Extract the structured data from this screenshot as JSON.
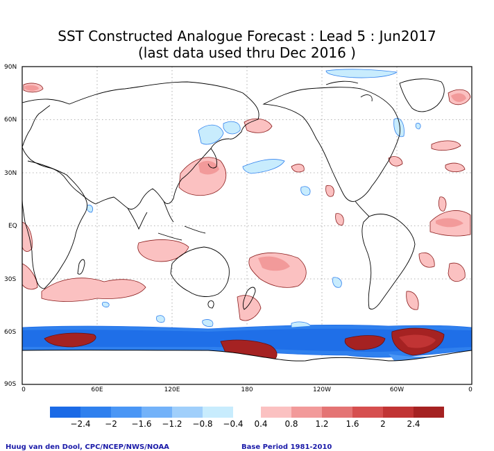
{
  "title": {
    "line1": "SST Constructed Analogue Forecast : Lead 5 : Jun2017",
    "line2": "(last data used thru Dec 2016 )"
  },
  "map": {
    "lat_labels": [
      "90N",
      "60N",
      "30N",
      "EQ",
      "30S",
      "60S",
      "90S"
    ],
    "lon_labels": [
      "0",
      "60E",
      "120E",
      "180",
      "120W",
      "60W",
      "0"
    ]
  },
  "colorbar": {
    "cool_colors": [
      "#1b6ae6",
      "#2f80ee",
      "#4a96f5",
      "#73b2f9",
      "#a0cffb",
      "#c8ecfd"
    ],
    "warm_colors": [
      "#fbc1c1",
      "#f29a9a",
      "#e47474",
      "#d64f4f",
      "#c13434",
      "#a52222"
    ],
    "cool_labels": [
      "−2.4",
      "−2",
      "−1.6",
      "−1.2",
      "−0.8",
      "−0.4"
    ],
    "warm_labels": [
      "0.4",
      "0.8",
      "1.2",
      "1.6",
      "2",
      "2.4"
    ]
  },
  "footer": {
    "left": "Huug van den Dool, CPC/NCEP/NWS/NOAA",
    "right": "Base Period 1981-2010"
  }
}
